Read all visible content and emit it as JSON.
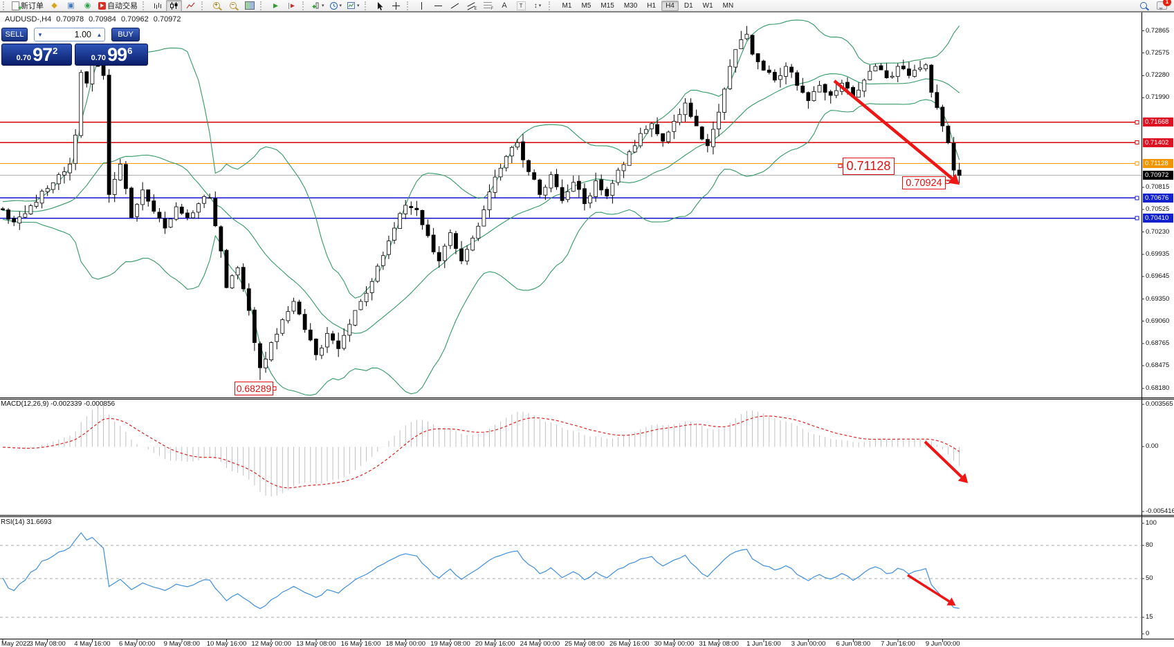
{
  "toolbar": {
    "new_order_label": "新订单",
    "autotrading_label": "自动交易",
    "timeframes": [
      "M1",
      "M5",
      "M15",
      "M30",
      "H1",
      "H4",
      "D1",
      "W1",
      "MN"
    ],
    "active_timeframe": "H4",
    "notification_count": "1"
  },
  "icons": {
    "gold_trade": "◆",
    "chart_window": "▣",
    "signal": "◉",
    "text_tool": "A",
    "label_tool": "T",
    "arrows_tool": "↕",
    "caret": "▾",
    "spin_down": "▼",
    "spin_up": "▲"
  },
  "chart_header": {
    "symbol_period": "AUDUSD-,H4",
    "open": "0.70978",
    "high": "0.70984",
    "low": "0.70962",
    "close": "0.70972"
  },
  "trade_panel": {
    "sell_label": "SELL",
    "buy_label": "BUY",
    "volume": "1.00",
    "sell_price_prefix": "0.70",
    "sell_price_big": "97",
    "sell_price_sup": "2",
    "buy_price_prefix": "0.70",
    "buy_price_big": "99",
    "buy_price_sup": "6"
  },
  "price_axis": {
    "ticks": [
      "0.72865",
      "0.72575",
      "0.72280",
      "0.71990",
      "0.70815",
      "0.70525",
      "0.70230",
      "0.69935",
      "0.69645",
      "0.69350",
      "0.69060",
      "0.68765",
      "0.68475",
      "0.68180"
    ],
    "badges": [
      {
        "text": "0.71668",
        "bg": "#dd1122"
      },
      {
        "text": "0.71402",
        "bg": "#dd1122"
      },
      {
        "text": "0.71128",
        "bg": "#f29400"
      },
      {
        "text": "0.70972",
        "bg": "#000000"
      },
      {
        "text": "0.70676",
        "bg": "#1122cc"
      },
      {
        "text": "0.70410",
        "bg": "#1122cc"
      }
    ]
  },
  "annotations": {
    "level_label": "0.71128",
    "breakdown_label": "0.70924",
    "low_label": "0.68289"
  },
  "macd_panel": {
    "label": "MACD(12,26,9) -0.002339 -0.000856",
    "axis": [
      "0.003565",
      "0.00",
      "-0.005416"
    ]
  },
  "rsi_panel": {
    "label": "RSI(14) 31.6693",
    "axis": [
      "100",
      "80",
      "50",
      "15",
      "0"
    ]
  },
  "time_axis": [
    "May 2022",
    "3 May 08:00",
    "4 May 16:00",
    "6 May 00:00",
    "9 May 08:00",
    "10 May 16:00",
    "12 May 00:00",
    "13 May 08:00",
    "16 May 16:00",
    "18 May 00:00",
    "19 May 08:00",
    "20 May 16:00",
    "24 May 00:00",
    "25 May 08:00",
    "26 May 16:00",
    "30 May 00:00",
    "31 May 08:00",
    "1 Jun 16:00",
    "3 Jun 00:00",
    "6 Jun 08:00",
    "7 Jun 16:00",
    "9 Jun 00:00"
  ],
  "chart_data": {
    "type": "candlestick",
    "symbol": "AUDUSD-",
    "timeframe": "H4",
    "title": "AUDUSD-,H4 0.70978 0.70984 0.70962 0.70972",
    "ohlc_display": {
      "open": 0.70978,
      "high": 0.70984,
      "low": 0.70962,
      "close": 0.70972
    },
    "price_range": [
      0.6818,
      0.72865
    ],
    "bars_total": 172,
    "close_anchors": [
      [
        0,
        0.7052
      ],
      [
        2,
        0.7036
      ],
      [
        4,
        0.7047
      ],
      [
        6,
        0.7062
      ],
      [
        8,
        0.708
      ],
      [
        10,
        0.7098
      ],
      [
        12,
        0.7112
      ],
      [
        13,
        0.715
      ],
      [
        14,
        0.7232
      ],
      [
        15,
        0.7218
      ],
      [
        16,
        0.7252
      ],
      [
        17,
        0.724
      ],
      [
        18,
        0.7228
      ],
      [
        19,
        0.7072
      ],
      [
        20,
        0.7092
      ],
      [
        21,
        0.7112
      ],
      [
        23,
        0.7042
      ],
      [
        25,
        0.7078
      ],
      [
        27,
        0.705
      ],
      [
        29,
        0.7028
      ],
      [
        31,
        0.7056
      ],
      [
        33,
        0.7042
      ],
      [
        35,
        0.706
      ],
      [
        37,
        0.7068
      ],
      [
        39,
        0.6998
      ],
      [
        40,
        0.695
      ],
      [
        42,
        0.6976
      ],
      [
        44,
        0.692
      ],
      [
        45,
        0.6878
      ],
      [
        46,
        0.6845
      ],
      [
        48,
        0.6878
      ],
      [
        50,
        0.6908
      ],
      [
        52,
        0.6932
      ],
      [
        54,
        0.6895
      ],
      [
        56,
        0.6862
      ],
      [
        58,
        0.689
      ],
      [
        60,
        0.687
      ],
      [
        62,
        0.6902
      ],
      [
        64,
        0.6932
      ],
      [
        66,
        0.6958
      ],
      [
        68,
        0.6992
      ],
      [
        70,
        0.7028
      ],
      [
        72,
        0.7058
      ],
      [
        74,
        0.7052
      ],
      [
        76,
        0.7018
      ],
      [
        78,
        0.6985
      ],
      [
        80,
        0.7022
      ],
      [
        82,
        0.6985
      ],
      [
        84,
        0.7015
      ],
      [
        86,
        0.7052
      ],
      [
        88,
        0.7095
      ],
      [
        90,
        0.7122
      ],
      [
        92,
        0.714
      ],
      [
        94,
        0.7102
      ],
      [
        96,
        0.7072
      ],
      [
        98,
        0.7098
      ],
      [
        100,
        0.7064
      ],
      [
        102,
        0.7088
      ],
      [
        104,
        0.706
      ],
      [
        106,
        0.709
      ],
      [
        108,
        0.707
      ],
      [
        110,
        0.7104
      ],
      [
        112,
        0.7128
      ],
      [
        114,
        0.7152
      ],
      [
        116,
        0.7165
      ],
      [
        118,
        0.7142
      ],
      [
        120,
        0.7168
      ],
      [
        122,
        0.7192
      ],
      [
        124,
        0.7162
      ],
      [
        126,
        0.7136
      ],
      [
        128,
        0.718
      ],
      [
        130,
        0.724
      ],
      [
        131,
        0.7262
      ],
      [
        132,
        0.7275
      ],
      [
        133,
        0.7282
      ],
      [
        134,
        0.7256
      ],
      [
        136,
        0.7235
      ],
      [
        138,
        0.7222
      ],
      [
        140,
        0.724
      ],
      [
        142,
        0.7215
      ],
      [
        144,
        0.7195
      ],
      [
        146,
        0.7215
      ],
      [
        148,
        0.7202
      ],
      [
        150,
        0.7218
      ],
      [
        152,
        0.72
      ],
      [
        154,
        0.7222
      ],
      [
        156,
        0.724
      ],
      [
        158,
        0.7225
      ],
      [
        160,
        0.724
      ],
      [
        162,
        0.7228
      ],
      [
        164,
        0.7238
      ],
      [
        165,
        0.7242
      ],
      [
        166,
        0.7206
      ],
      [
        167,
        0.7186
      ],
      [
        168,
        0.7162
      ],
      [
        169,
        0.714
      ],
      [
        170,
        0.7104
      ],
      [
        171,
        0.7097
      ]
    ],
    "wick_overrides": {
      "16": {
        "high": 0.7266
      },
      "46": {
        "low": 0.68289
      },
      "132": {
        "high": 0.72865
      },
      "170": {
        "low": 0.70924
      }
    },
    "horizontal_levels": [
      {
        "price": 0.71668,
        "color": "#d80000"
      },
      {
        "price": 0.71402,
        "color": "#d80000"
      },
      {
        "price": 0.71128,
        "color": "#ff9900"
      },
      {
        "price": 0.70676,
        "color": "#1414cc"
      },
      {
        "price": 0.7041,
        "color": "#1414cc"
      }
    ],
    "current_price": {
      "value": 0.70972,
      "color": "#b0b0b0"
    },
    "indicators": [
      {
        "name": "Bollinger Bands",
        "period": 20,
        "deviation": 2,
        "color": "#339966"
      },
      {
        "name": "MACD",
        "fast": 12,
        "slow": 26,
        "signal": 9,
        "values": [
          -0.002339,
          -0.000856
        ],
        "range": [
          -0.005416,
          0.003565
        ]
      },
      {
        "name": "RSI",
        "period": 14,
        "value": 31.6693,
        "levels": [
          80,
          50,
          15
        ],
        "range": [
          0,
          100
        ]
      }
    ],
    "marked_prices": {
      "resistance": 0.71128,
      "breakdown_low": 0.70924,
      "swing_low": 0.68289
    }
  }
}
